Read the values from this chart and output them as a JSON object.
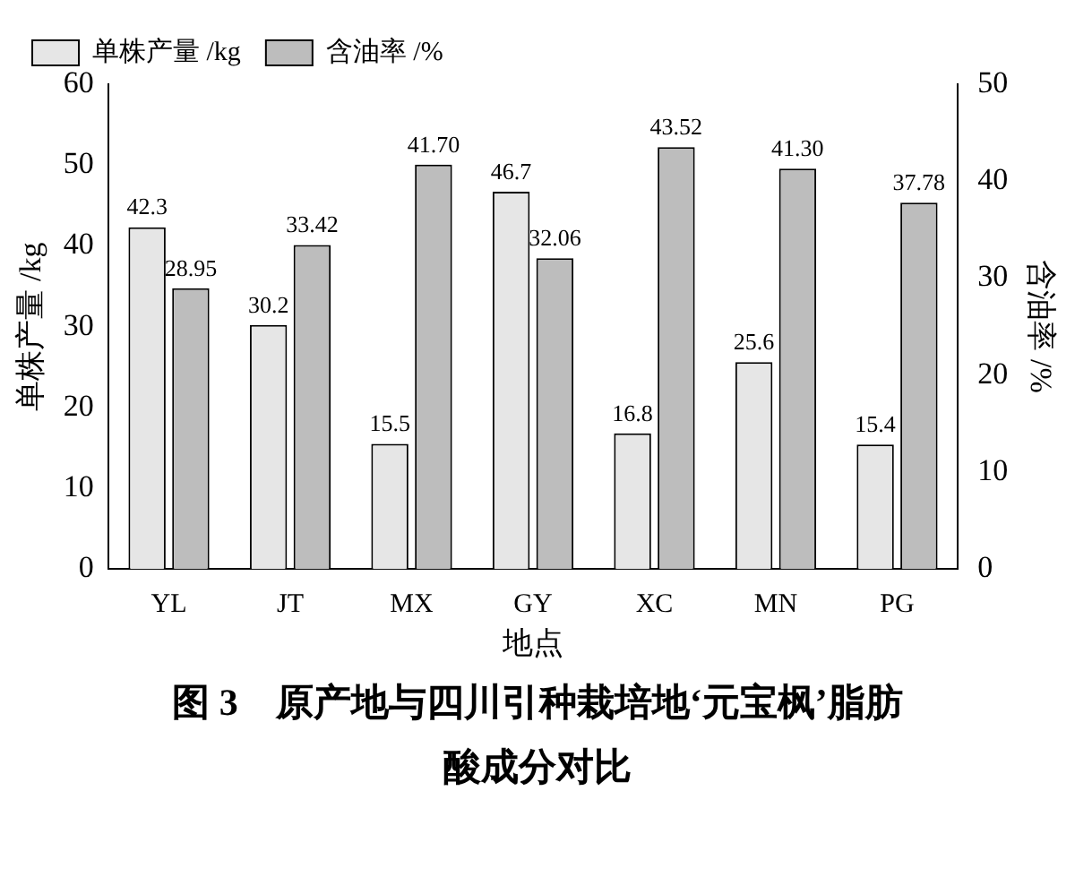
{
  "chart_data": {
    "type": "bar",
    "title": "图 3　原产地与四川引种栽培地‘元宝枫’脂肪酸成分对比",
    "xlabel": "地点",
    "ylabel": "单株产量 /kg",
    "y2label": "含油率 /%",
    "categories": [
      "YL",
      "JT",
      "MX",
      "GY",
      "XC",
      "MN",
      "PG"
    ],
    "series": [
      {
        "name": "单株产量 /kg",
        "color": "#e6e6e6",
        "values": [
          42.3,
          30.2,
          15.5,
          46.7,
          16.8,
          25.6,
          15.4
        ],
        "value_labels": [
          "42.3",
          "30.2",
          "15.5",
          "46.7",
          "16.8",
          "25.6",
          "15.4"
        ]
      },
      {
        "name": "含油率 /%",
        "color": "#bdbdbd",
        "axis": "y2",
        "values": [
          28.95,
          33.42,
          41.7,
          32.06,
          43.52,
          41.3,
          37.78
        ],
        "value_labels": [
          "28.95",
          "33.42",
          "41.70",
          "32.06",
          "43.52",
          "41.30",
          "37.78"
        ]
      }
    ],
    "ylim": [
      0,
      60
    ],
    "yticks": [
      0,
      10,
      20,
      30,
      40,
      50,
      60
    ],
    "y2lim": [
      0,
      50
    ],
    "y2ticks": [
      0,
      10,
      20,
      30,
      40,
      50
    ],
    "legend": "top left",
    "grid": false
  }
}
